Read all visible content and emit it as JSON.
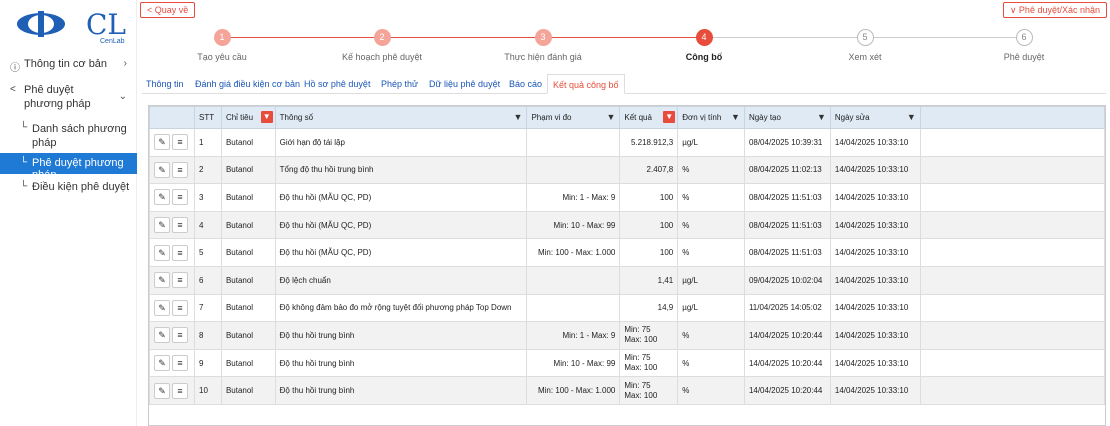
{
  "logo": {
    "brand": "CenLab",
    "mark": "CL"
  },
  "sidebar": {
    "items": [
      {
        "label": "Thông tin cơ bản",
        "icon": "info-icon"
      },
      {
        "label": "Phê duyệt phương pháp",
        "icon": "share-icon"
      },
      {
        "label": "Danh sách phương pháp",
        "icon": "corner-icon"
      },
      {
        "label": "Phê duyệt phương pháp",
        "icon": "corner-icon"
      },
      {
        "label": "Điều kiện phê duyệt",
        "icon": "corner-icon"
      }
    ]
  },
  "header": {
    "back_label": "< Quay về",
    "approve_label": "∨ Phê duyệt/Xác nhận"
  },
  "stepper": {
    "steps": [
      {
        "num": "1",
        "label": "Tạo yêu cầu",
        "state": "done"
      },
      {
        "num": "2",
        "label": "Kế hoạch phê duyệt",
        "state": "done"
      },
      {
        "num": "3",
        "label": "Thực hiện đánh giá",
        "state": "done"
      },
      {
        "num": "4",
        "label": "Công bố",
        "state": "active"
      },
      {
        "num": "5",
        "label": "Xem xét",
        "state": "todo"
      },
      {
        "num": "6",
        "label": "Phê duyệt",
        "state": "todo"
      }
    ]
  },
  "tabs": [
    {
      "label": "Thông tin"
    },
    {
      "label": "Đánh giá điều kiện cơ bản"
    },
    {
      "label": "Hồ sơ phê duyệt"
    },
    {
      "label": "Phép thử"
    },
    {
      "label": "Dữ liệu phê duyệt"
    },
    {
      "label": "Báo cáo"
    },
    {
      "label": "Kết quả công bố"
    }
  ],
  "table": {
    "headers": [
      "",
      "STT",
      "Chỉ tiêu",
      "Thông số",
      "Phạm vi đo",
      "Kết quả",
      "Đơn vị tính",
      "Ngày tạo",
      "Ngày sửa"
    ],
    "rows": [
      {
        "stt": "1",
        "chi_tieu": "Butanol",
        "thong_so": "Giới hạn độ tái lặp",
        "pham_vi": "",
        "ket_qua": "5.218.912,3",
        "don_vi": "µg/L",
        "ngay_tao": "08/04/2025 10:39:31",
        "ngay_sua": "14/04/2025 10:33:10"
      },
      {
        "stt": "2",
        "chi_tieu": "Butanol",
        "thong_so": "Tổng độ thu hồi trung bình",
        "pham_vi": "",
        "ket_qua": "2.407,8",
        "don_vi": "%",
        "ngay_tao": "08/04/2025 11:02:13",
        "ngay_sua": "14/04/2025 10:33:10"
      },
      {
        "stt": "3",
        "chi_tieu": "Butanol",
        "thong_so": "Độ thu hồi (MẪU QC, PD)",
        "pham_vi": "Min: 1 - Max: 9",
        "ket_qua": "100",
        "don_vi": "%",
        "ngay_tao": "08/04/2025 11:51:03",
        "ngay_sua": "14/04/2025 10:33:10"
      },
      {
        "stt": "4",
        "chi_tieu": "Butanol",
        "thong_so": "Độ thu hồi (MẪU QC, PD)",
        "pham_vi": "Min: 10 - Max: 99",
        "ket_qua": "100",
        "don_vi": "%",
        "ngay_tao": "08/04/2025 11:51:03",
        "ngay_sua": "14/04/2025 10:33:10"
      },
      {
        "stt": "5",
        "chi_tieu": "Butanol",
        "thong_so": "Độ thu hồi (MẪU QC, PD)",
        "pham_vi": "Min: 100 - Max: 1.000",
        "ket_qua": "100",
        "don_vi": "%",
        "ngay_tao": "08/04/2025 11:51:03",
        "ngay_sua": "14/04/2025 10:33:10"
      },
      {
        "stt": "6",
        "chi_tieu": "Butanol",
        "thong_so": "Độ lệch chuẩn",
        "pham_vi": "",
        "ket_qua": "1,41",
        "don_vi": "µg/L",
        "ngay_tao": "09/04/2025 10:02:04",
        "ngay_sua": "14/04/2025 10:33:10"
      },
      {
        "stt": "7",
        "chi_tieu": "Butanol",
        "thong_so": "Độ không đảm bảo đo mở rộng tuyệt đối phương pháp Top Down",
        "pham_vi": "",
        "ket_qua": "14,9",
        "don_vi": "µg/L",
        "ngay_tao": "11/04/2025 14:05:02",
        "ngay_sua": "14/04/2025 10:33:10"
      },
      {
        "stt": "8",
        "chi_tieu": "Butanol",
        "thong_so": "Độ thu hồi trung bình",
        "pham_vi": "Min: 1 - Max: 9",
        "ket_qua": "Min: 75\nMax: 100",
        "don_vi": "%",
        "ngay_tao": "14/04/2025 10:20:44",
        "ngay_sua": "14/04/2025 10:33:10"
      },
      {
        "stt": "9",
        "chi_tieu": "Butanol",
        "thong_so": "Độ thu hồi trung bình",
        "pham_vi": "Min: 10 - Max: 99",
        "ket_qua": "Min: 75\nMax: 100",
        "don_vi": "%",
        "ngay_tao": "14/04/2025 10:20:44",
        "ngay_sua": "14/04/2025 10:33:10"
      },
      {
        "stt": "10",
        "chi_tieu": "Butanol",
        "thong_so": "Độ thu hồi trung bình",
        "pham_vi": "Min: 100 - Max: 1.000",
        "ket_qua": "Min: 75\nMax: 100",
        "don_vi": "%",
        "ngay_tao": "14/04/2025 10:20:44",
        "ngay_sua": "14/04/2025 10:33:10"
      }
    ]
  },
  "colors": {
    "accent": "#e74c3c",
    "primary": "#1f7ad6",
    "header_bg": "#dfeaf5"
  }
}
